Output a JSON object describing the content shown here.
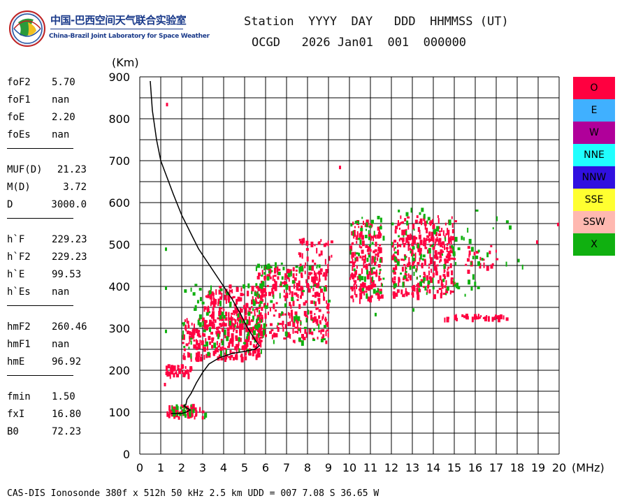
{
  "header": {
    "org_cn": "中国-巴西空间天气联合实验室",
    "org_en": "China-Brazil Joint Laboratory for Space Weather",
    "row1": "Station  YYYY  DAY   DDD  HHMMSS (UT)",
    "row2": "OCGD   2026 Jan01  001  000000"
  },
  "params": [
    {
      "name": "foF2",
      "value": "5.70"
    },
    {
      "name": "foF1",
      "value": "nan"
    },
    {
      "name": "foE",
      "value": "2.20"
    },
    {
      "name": "foEs",
      "value": "nan"
    },
    {
      "name": "MUF(D)",
      "value": "21.23"
    },
    {
      "name": "M(D)",
      "value": "3.72"
    },
    {
      "name": "D",
      "value": "3000.0"
    },
    {
      "name": "h`F",
      "value": "229.23"
    },
    {
      "name": "h`F2",
      "value": "229.23"
    },
    {
      "name": "h`E",
      "value": "99.53"
    },
    {
      "name": "h`Es",
      "value": "nan"
    },
    {
      "name": "hmF2",
      "value": "260.46"
    },
    {
      "name": "hmF1",
      "value": "nan"
    },
    {
      "name": "hmE",
      "value": "96.92"
    },
    {
      "name": "fmin",
      "value": "1.50"
    },
    {
      "name": "fxI",
      "value": "16.80"
    },
    {
      "name": "B0",
      "value": "72.23"
    }
  ],
  "legend": [
    {
      "label": "O",
      "color": "#ff0040"
    },
    {
      "label": "E",
      "color": "#40b0ff"
    },
    {
      "label": "W",
      "color": "#b0009a"
    },
    {
      "label": "NNE",
      "color": "#20ffff"
    },
    {
      "label": "NNW",
      "color": "#3010e0"
    },
    {
      "label": "SSE",
      "color": "#ffff30"
    },
    {
      "label": "SSW",
      "color": "#ffb8b0"
    },
    {
      "label": "X",
      "color": "#10b010"
    }
  ],
  "footer": "CAS-DIS Ionosonde 380f x 512h 50 kHz 2.5 km UDD = 007 7.08 S 36.65 W",
  "chart_data": {
    "type": "scatter",
    "xlabel": "(MHz)",
    "ylabel": "(Km)",
    "xlim": [
      0,
      20
    ],
    "ylim": [
      0,
      900
    ],
    "x_ticks": [
      0,
      1,
      2,
      3,
      4,
      5,
      6,
      7,
      8,
      9,
      10,
      11,
      12,
      13,
      14,
      15,
      16,
      17,
      18,
      19,
      20
    ],
    "y_ticks": [
      0,
      100,
      200,
      300,
      400,
      500,
      600,
      700,
      800,
      900
    ],
    "grid": true,
    "legend_position": "right",
    "series": [
      {
        "name": "O",
        "color": "#ff0040",
        "clusters": [
          {
            "x": [
              1.2,
              3.0
            ],
            "y": [
              90,
              120
            ],
            "n": 60
          },
          {
            "x": [
              1.2,
              2.4
            ],
            "y": [
              190,
              215
            ],
            "n": 40
          },
          {
            "x": [
              2.0,
              5.8
            ],
            "y": [
              230,
              330
            ],
            "n": 260
          },
          {
            "x": [
              3.0,
              5.8
            ],
            "y": [
              300,
              405
            ],
            "n": 160
          },
          {
            "x": [
              5.5,
              9.0
            ],
            "y": [
              270,
              450
            ],
            "n": 260
          },
          {
            "x": [
              7.5,
              9.2
            ],
            "y": [
              420,
              520
            ],
            "n": 40
          },
          {
            "x": [
              10.0,
              11.5
            ],
            "y": [
              370,
              560
            ],
            "n": 170
          },
          {
            "x": [
              12.0,
              15.0
            ],
            "y": [
              380,
              570
            ],
            "n": 320
          },
          {
            "x": [
              14.5,
              17.5
            ],
            "y": [
              325,
              335
            ],
            "n": 35
          },
          {
            "x": [
              15.5,
              17.0
            ],
            "y": [
              440,
              500
            ],
            "n": 20
          }
        ],
        "points": [
          [
            1.25,
            838
          ],
          [
            9.5,
            688
          ],
          [
            19.9,
            552
          ],
          [
            18.9,
            510
          ],
          [
            1.15,
            170
          ]
        ]
      },
      {
        "name": "X",
        "color": "#10b010",
        "clusters": [
          {
            "x": [
              1.5,
              3.1
            ],
            "y": [
              95,
              120
            ],
            "n": 25
          },
          {
            "x": [
              2.0,
              5.8
            ],
            "y": [
              240,
              410
            ],
            "n": 90
          },
          {
            "x": [
              5.5,
              9.0
            ],
            "y": [
              270,
              460
            ],
            "n": 80
          },
          {
            "x": [
              10.0,
              11.6
            ],
            "y": [
              380,
              570
            ],
            "n": 50
          },
          {
            "x": [
              12.0,
              16.2
            ],
            "y": [
              380,
              590
            ],
            "n": 90
          },
          {
            "x": [
              15.8,
              18.6
            ],
            "y": [
              450,
              570
            ],
            "n": 12
          }
        ],
        "points": [
          [
            1.2,
            493
          ],
          [
            1.2,
            400
          ],
          [
            1.2,
            297
          ],
          [
            13.0,
            348
          ],
          [
            11.2,
            337
          ]
        ]
      }
    ],
    "trace": {
      "x": [
        0.5,
        0.6,
        0.8,
        1.0,
        1.3,
        1.6,
        2.0,
        2.4,
        2.8,
        3.2,
        3.6,
        4.0,
        4.4,
        4.8,
        5.1,
        5.4,
        5.6,
        5.7,
        5.5,
        5.0,
        4.4,
        3.8,
        3.3,
        3.0,
        2.7,
        2.45,
        2.25,
        2.2,
        2.1,
        2.4,
        2.2,
        2.0,
        1.5
      ],
      "y": [
        890,
        820,
        750,
        700,
        660,
        620,
        570,
        530,
        490,
        460,
        430,
        400,
        370,
        335,
        305,
        280,
        265,
        258,
        250,
        245,
        240,
        230,
        215,
        195,
        170,
        145,
        130,
        118,
        115,
        105,
        100,
        97,
        97
      ]
    }
  }
}
